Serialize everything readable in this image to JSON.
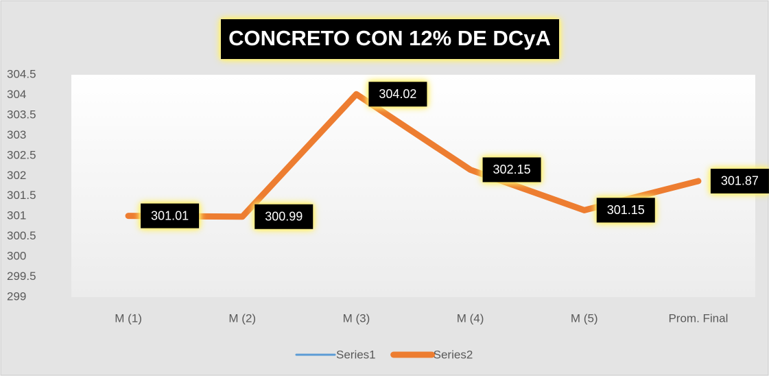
{
  "chart_data": {
    "type": "line",
    "title": "CONCRETO CON 12% DE DCyA",
    "categories": [
      "M (1)",
      "M (2)",
      "M (3)",
      "M (4)",
      "M (5)",
      "Prom. Final"
    ],
    "series": [
      {
        "name": "Series1",
        "color": "#5b9bd5",
        "values": [
          null,
          null,
          null,
          null,
          null,
          null
        ]
      },
      {
        "name": "Series2",
        "color": "#ed7d31",
        "values": [
          301.01,
          300.99,
          304.02,
          302.15,
          301.15,
          301.87
        ]
      }
    ],
    "ylim": [
      299,
      304.5
    ],
    "yticks": [
      299,
      299.5,
      300,
      300.5,
      301,
      301.5,
      302,
      302.5,
      303,
      303.5,
      304,
      304.5
    ],
    "legend": "bottom"
  }
}
